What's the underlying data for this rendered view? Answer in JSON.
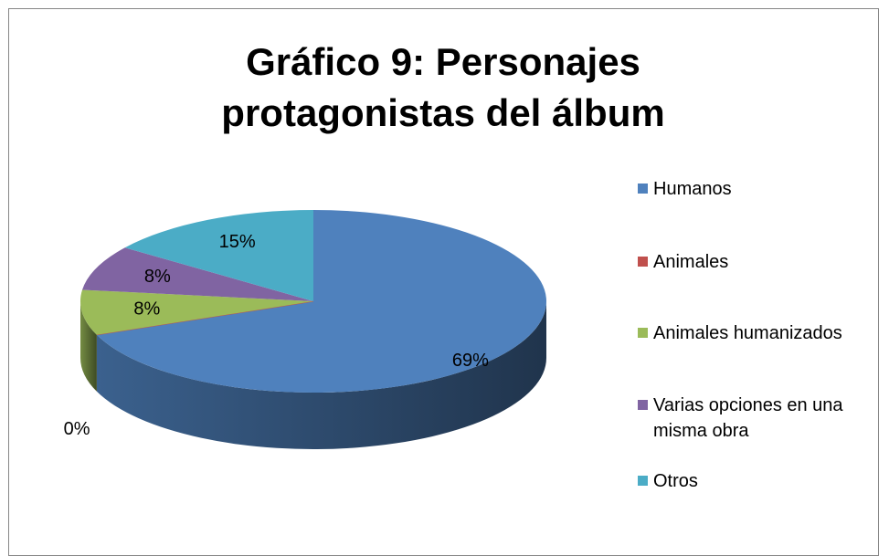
{
  "chart_data": {
    "type": "pie3d",
    "title": "Gráfico 9: Personajes protagonistas del álbum",
    "categories": [
      "Humanos",
      "Animales",
      "Animales humanizados",
      "Varias opciones en una misma obra",
      "Otros"
    ],
    "values": [
      69,
      0,
      8,
      8,
      15
    ],
    "value_labels": [
      "69%",
      "0%",
      "8%",
      "8%",
      "15%"
    ],
    "colors": [
      "#4f81bd",
      "#c0504d",
      "#9bbb59",
      "#8064a2",
      "#4bacc6"
    ],
    "legend": "right"
  }
}
